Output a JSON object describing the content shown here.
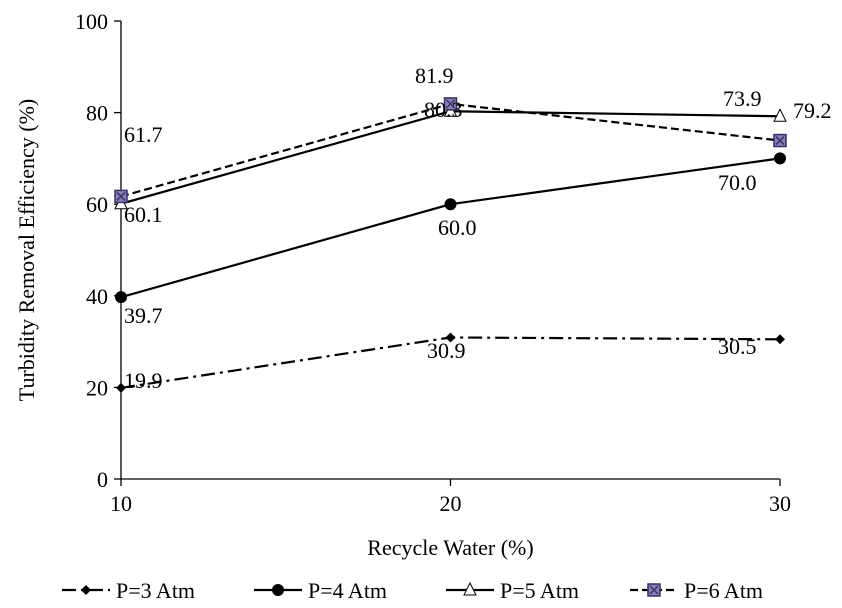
{
  "chart_data": {
    "type": "line",
    "xlabel": "Recycle Water (%)",
    "ylabel": "Turbidity Removal Efficiency (%)",
    "x": [
      10,
      20,
      30
    ],
    "x_ticks": [
      "10",
      "20",
      "30"
    ],
    "y_ticks": [
      "0",
      "20",
      "40",
      "60",
      "80",
      "100"
    ],
    "xlim": [
      10,
      30
    ],
    "ylim": [
      0,
      100
    ],
    "grid": false,
    "legend_position": "bottom",
    "series": [
      {
        "name": "P=3 Atm",
        "values": [
          19.9,
          30.9,
          30.5
        ],
        "labels": [
          "19.9",
          "30.9",
          "30.5"
        ],
        "line_style": "dash-dot",
        "marker": "diamond",
        "color": "#000000"
      },
      {
        "name": "P=4 Atm",
        "values": [
          39.7,
          60.0,
          70.0
        ],
        "labels": [
          "39.7",
          "60.0",
          "70.0"
        ],
        "line_style": "solid",
        "marker": "circle",
        "color": "#000000"
      },
      {
        "name": "P=5 Atm",
        "values": [
          60.1,
          80.3,
          79.2
        ],
        "labels": [
          "60.1",
          "80.3",
          "79.2"
        ],
        "line_style": "solid",
        "marker": "triangle-open",
        "color": "#000000"
      },
      {
        "name": "P=6 Atm",
        "values": [
          61.7,
          81.9,
          73.9
        ],
        "labels": [
          "61.7",
          "81.9",
          "73.9"
        ],
        "line_style": "dashed",
        "marker": "square-x",
        "color": "#000000",
        "marker_fill": "#8a7fb0"
      }
    ]
  }
}
